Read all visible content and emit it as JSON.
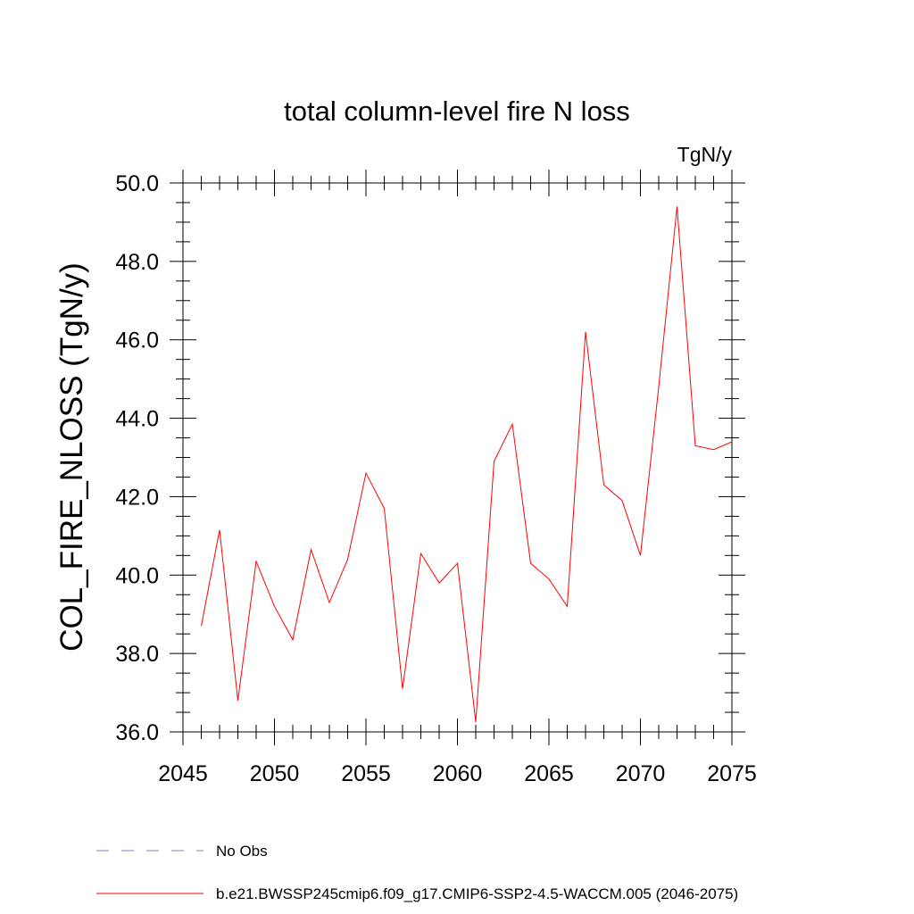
{
  "chart_data": {
    "type": "line",
    "title": "total column-level fire N loss",
    "units_label": "TgN/y",
    "ylabel": "COL_FIRE_NLOSS  (TgN/y)",
    "xlabel": "",
    "xlim": [
      2045,
      2075
    ],
    "ylim": [
      36.0,
      50.0
    ],
    "x_ticks": [
      "2045",
      "2050",
      "2055",
      "2060",
      "2065",
      "2070",
      "2075"
    ],
    "y_ticks": [
      "36.0",
      "38.0",
      "40.0",
      "42.0",
      "44.0",
      "46.0",
      "48.0",
      "50.0"
    ],
    "grid": false,
    "legend_position": "bottom",
    "series": [
      {
        "name": "b.e21.BWSSP245cmip6.f09_g17.CMIP6-SSP2-4.5-WACCM.005 (2046-2075)",
        "color": "#ff0000",
        "x": [
          2046,
          2047,
          2048,
          2049,
          2050,
          2051,
          2052,
          2053,
          2054,
          2055,
          2056,
          2057,
          2058,
          2059,
          2060,
          2061,
          2062,
          2063,
          2064,
          2065,
          2066,
          2067,
          2068,
          2069,
          2070,
          2071,
          2072,
          2073,
          2074,
          2075
        ],
        "y": [
          38.7,
          41.15,
          36.8,
          40.35,
          39.2,
          38.35,
          40.65,
          39.3,
          40.4,
          42.6,
          41.7,
          37.1,
          40.55,
          39.8,
          40.3,
          36.25,
          42.9,
          43.85,
          40.3,
          39.9,
          39.2,
          46.2,
          42.3,
          41.9,
          40.5,
          44.8,
          49.4,
          43.3,
          43.2,
          43.4
        ]
      }
    ],
    "legend": [
      {
        "label": "No Obs",
        "color": "#8a7fc0",
        "style": "dashed"
      },
      {
        "label": "b.e21.BWSSP245cmip6.f09_g17.CMIP6-SSP2-4.5-WACCM.005 (2046-2075)",
        "color": "#ff0000",
        "style": "solid"
      }
    ]
  }
}
